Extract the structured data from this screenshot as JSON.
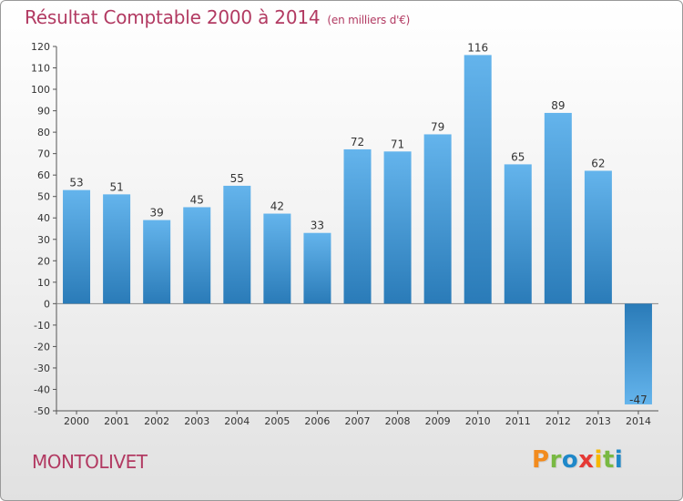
{
  "header": {
    "title": "Résultat Comptable 2000 à 2014",
    "subtitle": "(en milliers d'€)"
  },
  "footer": {
    "commune": "MONTOLIVET",
    "brand": "Proxiti",
    "brand_colors": [
      "#f28b1e",
      "#79b943",
      "#1f88c9",
      "#e53935",
      "#f6b800",
      "#79b943",
      "#1f88c9"
    ]
  },
  "colors": {
    "accent": "#b23a62",
    "bar_light": "#64b4ec",
    "bar_dark": "#2a7bb8",
    "axis": "#555555",
    "grid": "#c9c9c9"
  },
  "chart_data": {
    "type": "bar",
    "title": "Résultat Comptable 2000 à 2014",
    "subtitle": "(en milliers d'€)",
    "categories": [
      "2000",
      "2001",
      "2002",
      "2003",
      "2004",
      "2005",
      "2006",
      "2007",
      "2008",
      "2009",
      "2010",
      "2011",
      "2012",
      "2013",
      "2014"
    ],
    "values": [
      53,
      51,
      39,
      45,
      55,
      42,
      33,
      72,
      71,
      79,
      116,
      65,
      89,
      62,
      -47
    ],
    "value_labels": [
      "53",
      "51",
      "39",
      "45",
      "55",
      "42",
      "33",
      "72",
      "71",
      "79",
      "116",
      "65",
      "89",
      "62",
      "-47"
    ],
    "ylim": [
      -50,
      120
    ],
    "ytick_step": 10,
    "xlabel": "",
    "ylabel": "",
    "grid": false,
    "legend": "none"
  }
}
